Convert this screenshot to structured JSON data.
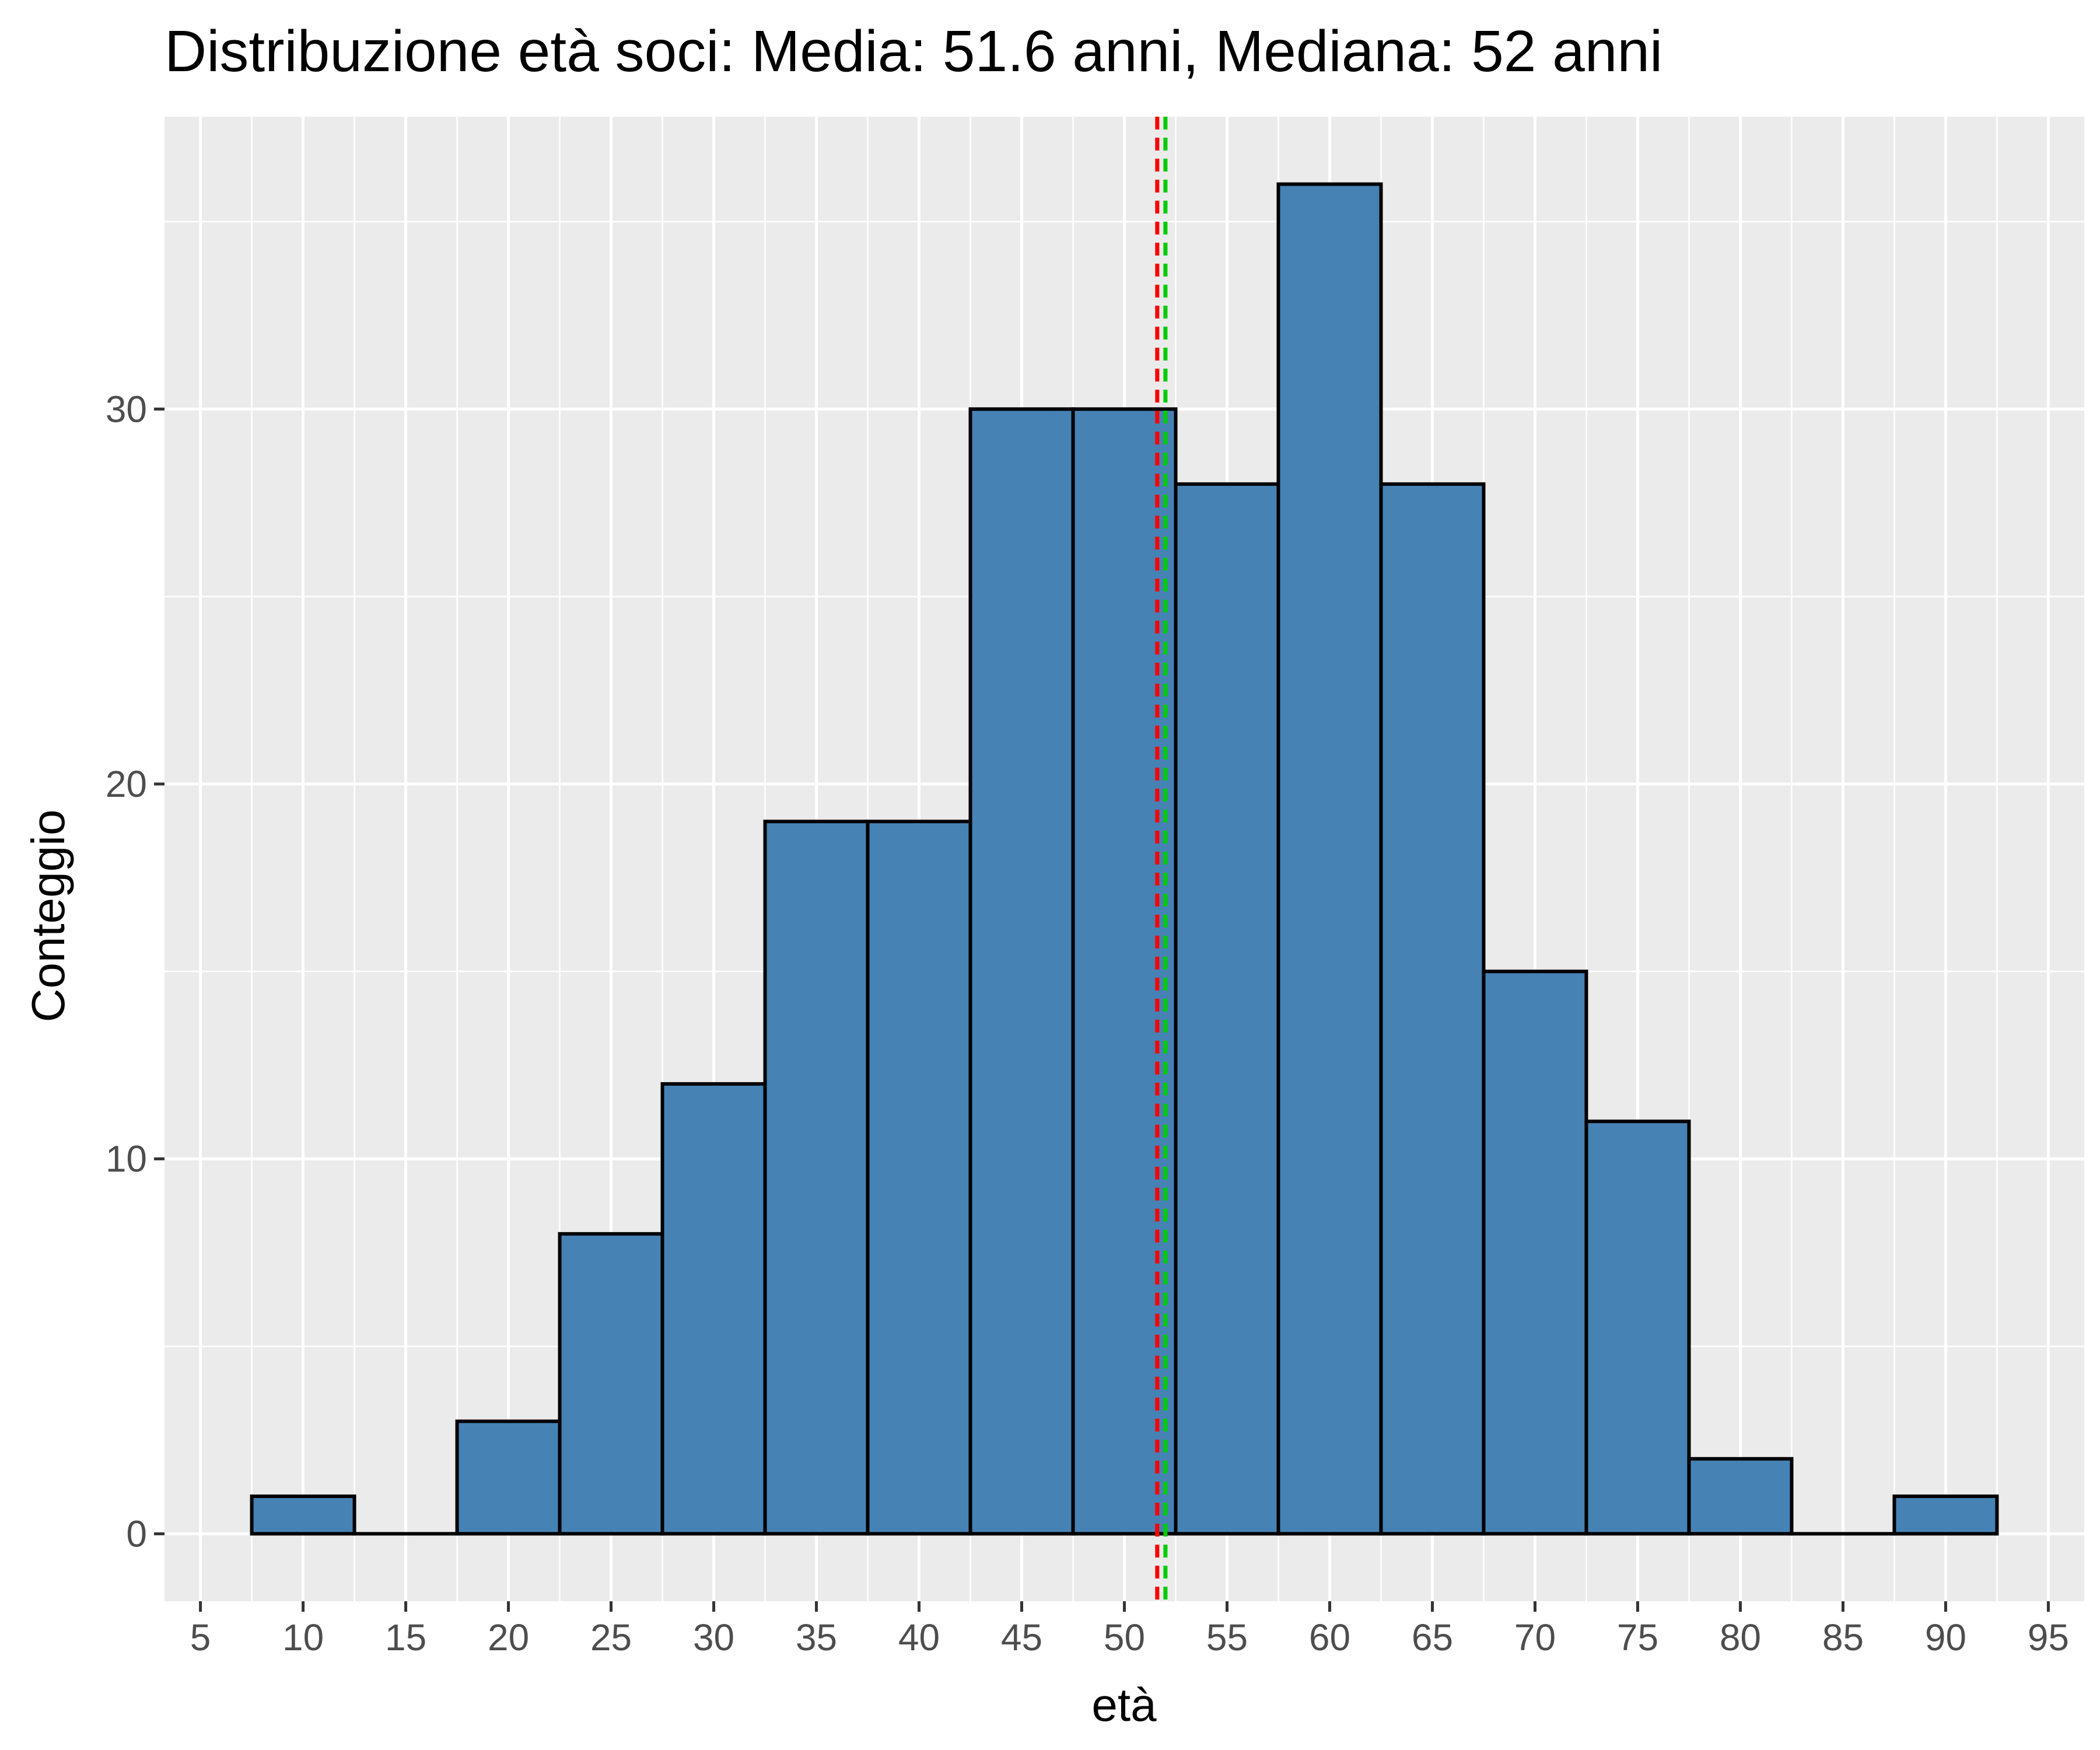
{
  "chart_data": {
    "type": "bar",
    "title": "Distribuzione età soci: Media: 51.6 anni, Mediana: 52 anni",
    "xlabel": "età",
    "ylabel": "Conteggio",
    "bin_width": 5,
    "bins": [
      {
        "center": 10,
        "count": 1
      },
      {
        "center": 15,
        "count": 0
      },
      {
        "center": 20,
        "count": 3
      },
      {
        "center": 25,
        "count": 8
      },
      {
        "center": 30,
        "count": 12
      },
      {
        "center": 35,
        "count": 19
      },
      {
        "center": 40,
        "count": 19
      },
      {
        "center": 45,
        "count": 30
      },
      {
        "center": 50,
        "count": 30
      },
      {
        "center": 55,
        "count": 28
      },
      {
        "center": 60,
        "count": 36
      },
      {
        "center": 65,
        "count": 28
      },
      {
        "center": 70,
        "count": 15
      },
      {
        "center": 75,
        "count": 11
      },
      {
        "center": 80,
        "count": 2
      },
      {
        "center": 85,
        "count": 0
      },
      {
        "center": 90,
        "count": 1
      }
    ],
    "xlim": [
      3.25,
      96.75
    ],
    "ylim": [
      -1.8,
      37.8
    ],
    "x_ticks": [
      5,
      10,
      15,
      20,
      25,
      30,
      35,
      40,
      45,
      50,
      55,
      60,
      65,
      70,
      75,
      80,
      85,
      90,
      95
    ],
    "y_ticks": [
      0,
      10,
      20,
      30
    ],
    "y_minor": [
      5,
      15,
      25,
      35
    ],
    "reference_lines": [
      {
        "label": "Media",
        "value": 51.6,
        "color": "#FF0000",
        "style": "dashed"
      },
      {
        "label": "Mediana",
        "value": 52,
        "color": "#00CC00",
        "style": "dashed"
      }
    ],
    "grid": true,
    "legend": "none",
    "colors": {
      "bar_fill": "#4682B4",
      "bar_outline": "#000000",
      "panel_background": "#EBEBEB",
      "grid": "#FFFFFF",
      "tick": "#333333",
      "tick_label": "#4D4D4D"
    }
  }
}
